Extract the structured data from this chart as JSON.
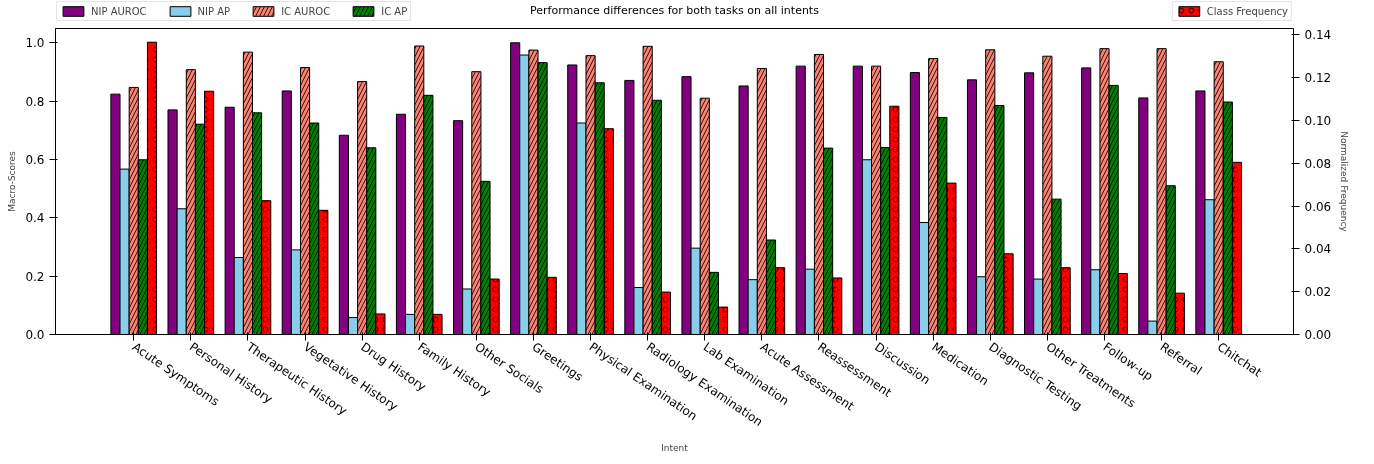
{
  "chart_data": {
    "type": "bar",
    "title": "Performance differences for both tasks on all intents",
    "xlabel": "Intent",
    "ylabel": "Macro-Scores",
    "y2label": "Normalized Frequency",
    "categories": [
      "Acute Symptoms",
      "Personal History",
      "Therapeutic History",
      "Vegetative History",
      "Drug History",
      "Family History",
      "Other Socials",
      "Greetings",
      "Physical Examination",
      "Radiology Examination",
      "Lab Examination",
      "Acute Assessment",
      "Reassessment",
      "Discussion",
      "Medication",
      "Diagnostic Testing",
      "Other Treatments",
      "Follow-up",
      "Referral",
      "Chitchat"
    ],
    "series": [
      {
        "name": "NIP AUROC",
        "color": "#800080",
        "values": [
          0.824,
          0.77,
          0.779,
          0.835,
          0.683,
          0.755,
          0.733,
          1.0,
          0.924,
          0.871,
          0.884,
          0.852,
          0.92,
          0.92,
          0.898,
          0.873,
          0.897,
          0.914,
          0.811,
          0.835
        ]
      },
      {
        "name": "NIP AP",
        "color": "#87ceeb",
        "values": [
          0.567,
          0.431,
          0.264,
          0.29,
          0.058,
          0.069,
          0.156,
          0.958,
          0.725,
          0.161,
          0.296,
          0.188,
          0.224,
          0.599,
          0.384,
          0.198,
          0.19,
          0.222,
          0.046,
          0.462
        ]
      },
      {
        "name": "IC AUROC",
        "color": "#fa8072",
        "values": [
          0.847,
          0.908,
          0.968,
          0.915,
          0.867,
          0.989,
          0.901,
          0.975,
          0.956,
          0.988,
          0.81,
          0.912,
          0.96,
          0.92,
          0.946,
          0.976,
          0.954,
          0.98,
          0.98,
          0.935
        ]
      },
      {
        "name": "IC AP",
        "color": "#008000",
        "values": [
          0.599,
          0.721,
          0.76,
          0.725,
          0.64,
          0.82,
          0.525,
          0.932,
          0.863,
          0.803,
          0.213,
          0.324,
          0.639,
          0.641,
          0.744,
          0.785,
          0.464,
          0.854,
          0.51,
          0.797
        ]
      },
      {
        "name": "Class Frequency",
        "color": "#ff0000",
        "axis": "y2",
        "values": [
          0.1365,
          0.1136,
          0.0625,
          0.058,
          0.0096,
          0.0094,
          0.0259,
          0.0267,
          0.0961,
          0.0198,
          0.0128,
          0.0312,
          0.0264,
          0.1066,
          0.0707,
          0.0377,
          0.0312,
          0.0285,
          0.0193,
          0.0804
        ]
      }
    ],
    "ylim": [
      0,
      1.049
    ],
    "yticks": [
      {
        "value": 0,
        "label": "0.0"
      },
      0.2,
      0.4,
      0.6,
      0.8,
      {
        "value": 1,
        "label": "1.0"
      }
    ],
    "y2lim": [
      0,
      0.1429
    ],
    "y2ticks": [
      {
        "value": 0,
        "label": "0.00"
      },
      0.02,
      0.04,
      0.06,
      0.08,
      {
        "value": 0.1,
        "label": "0.10"
      },
      0.12,
      0.14
    ],
    "grid": false,
    "legend": "top"
  }
}
